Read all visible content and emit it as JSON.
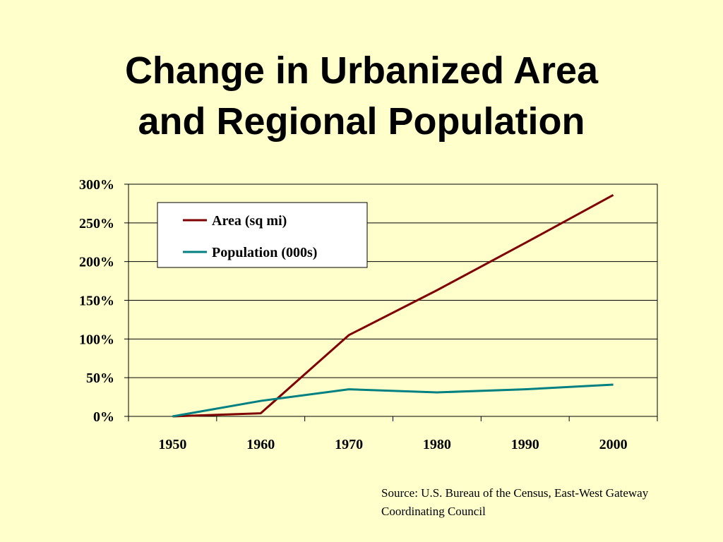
{
  "slide": {
    "title_line1": "Change in Urbanized Area",
    "title_line2": "and Regional Population",
    "source_line1": "Source: U.S. Bureau of the Census, East-West Gateway",
    "source_line2": "Coordinating Council",
    "background_color": "#ffffcc"
  },
  "chart_data": {
    "type": "line",
    "title": "",
    "xlabel": "",
    "ylabel": "",
    "categories": [
      "1950",
      "1960",
      "1970",
      "1980",
      "1990",
      "2000"
    ],
    "y_ticks": [
      "0%",
      "50%",
      "100%",
      "150%",
      "200%",
      "250%",
      "300%"
    ],
    "ylim": [
      0,
      300
    ],
    "y_unit": "%",
    "grid": true,
    "legend_position": "top-left",
    "series": [
      {
        "name": "Area (sq mi)",
        "color": "#800000",
        "values": [
          0,
          4,
          105,
          163,
          224,
          286
        ]
      },
      {
        "name": "Population (000s)",
        "color": "#008080",
        "values": [
          0,
          20,
          35,
          31,
          35,
          41
        ]
      }
    ]
  }
}
